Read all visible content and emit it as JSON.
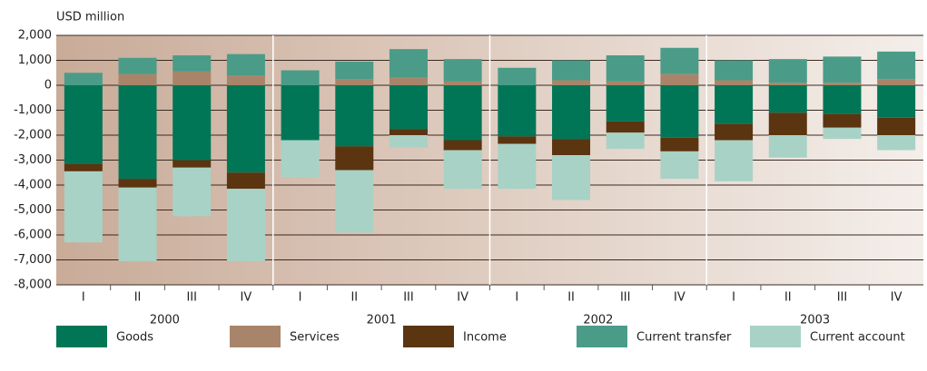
{
  "chart_data": {
    "type": "stacked_bar",
    "y_axis_label": "USD million",
    "categories": [
      "I",
      "II",
      "III",
      "IV",
      "I",
      "II",
      "III",
      "IV",
      "I",
      "II",
      "III",
      "IV",
      "I",
      "II",
      "III",
      "IV"
    ],
    "years": [
      "2000",
      "2001",
      "2002",
      "2003"
    ],
    "series": [
      {
        "name": "Goods",
        "color": "#007656",
        "values": [
          -3150,
          -3750,
          -3000,
          -3500,
          -2200,
          -2450,
          -1750,
          -2200,
          -2050,
          -2150,
          -1450,
          -2100,
          -1550,
          -1100,
          -1150,
          -1300
        ]
      },
      {
        "name": "Services",
        "color": "#a8856a",
        "values": [
          0,
          450,
          550,
          400,
          0,
          250,
          300,
          150,
          0,
          200,
          150,
          450,
          200,
          100,
          100,
          250
        ]
      },
      {
        "name": "Income",
        "color": "#5b3410",
        "values": [
          -300,
          -350,
          -300,
          -650,
          0,
          -950,
          -250,
          -400,
          -300,
          -650,
          -450,
          -550,
          -650,
          -900,
          -550,
          -700
        ]
      },
      {
        "name": "Current transfer",
        "color": "#4a9c88",
        "values": [
          500,
          650,
          650,
          850,
          600,
          700,
          1150,
          900,
          700,
          800,
          1050,
          1050,
          800,
          950,
          1050,
          1100
        ]
      },
      {
        "name": "Current account",
        "color": "#a8d2c6",
        "values": [
          -2850,
          -2950,
          -1950,
          -2900,
          -1500,
          -2500,
          -500,
          -1550,
          -1800,
          -1800,
          -650,
          -1100,
          -1650,
          -900,
          -450,
          -600
        ]
      }
    ],
    "ylim": [
      -8000,
      2000
    ],
    "yticks": [
      {
        "value": 2000,
        "label": "2,000"
      },
      {
        "value": 1000,
        "label": "1,000"
      },
      0,
      {
        "value": -1000,
        "label": "-1,000"
      },
      {
        "value": -2000,
        "label": "-2,000"
      },
      {
        "value": -3000,
        "label": "-3,000"
      },
      {
        "value": -4000,
        "label": "-4,000"
      },
      {
        "value": -5000,
        "label": "-5,000"
      },
      {
        "value": -6000,
        "label": "-6,000"
      },
      {
        "value": -7000,
        "label": "-7,000"
      },
      {
        "value": -8000,
        "label": "-8,000"
      }
    ],
    "grid": true
  }
}
